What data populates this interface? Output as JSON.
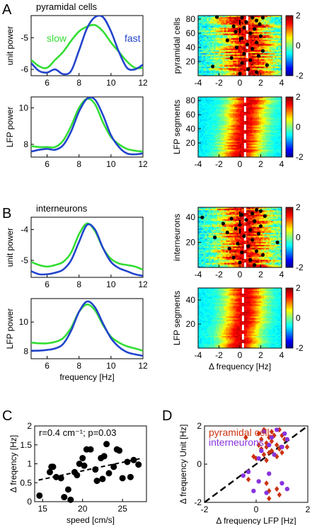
{
  "panels": {
    "A": "A",
    "B": "B",
    "C": "C",
    "D": "D"
  },
  "colors": {
    "slow": "#33dd33",
    "fast": "#2244cc",
    "pyramidal": "#cc3311",
    "interneurons": "#8833dd"
  },
  "chart_data": [
    {
      "id": "A-unit",
      "type": "line",
      "title": "pyramidal cells",
      "xlabel": "",
      "ylabel": "unit power",
      "xlim": [
        5,
        12
      ],
      "ylim": [
        -6.2,
        -4.3
      ],
      "xticks": [
        6,
        8,
        10,
        12
      ],
      "yticks": [
        -6,
        -5
      ],
      "series": [
        {
          "name": "slow",
          "color": "#33dd33",
          "x": [
            5,
            5.5,
            6,
            6.5,
            7,
            7.5,
            8,
            8.5,
            9,
            9.5,
            10,
            10.5,
            11,
            11.5,
            12
          ],
          "y": [
            -5.7,
            -5.9,
            -5.95,
            -5.7,
            -5.45,
            -5.1,
            -4.8,
            -4.65,
            -4.6,
            -4.8,
            -5.15,
            -5.45,
            -5.75,
            -5.95,
            -5.95
          ]
        },
        {
          "name": "fast",
          "color": "#2244cc",
          "x": [
            5,
            5.5,
            6,
            6.5,
            7,
            7.5,
            8,
            8.5,
            9,
            9.5,
            10,
            10.5,
            11,
            11.5,
            12
          ],
          "y": [
            -5.8,
            -6.05,
            -6.1,
            -6.0,
            -6.15,
            -6.05,
            -5.4,
            -4.7,
            -4.35,
            -4.35,
            -4.8,
            -5.45,
            -5.95,
            -6.0,
            -5.85
          ]
        }
      ]
    },
    {
      "id": "A-lfp",
      "type": "line",
      "xlabel": "",
      "ylabel": "LFP power",
      "xlim": [
        5,
        12
      ],
      "ylim": [
        7.3,
        10.6
      ],
      "xticks": [
        6,
        8,
        10,
        12
      ],
      "yticks": [
        8,
        10
      ],
      "series": [
        {
          "name": "slow",
          "color": "#33dd33",
          "x": [
            5,
            5.5,
            6,
            6.5,
            7,
            7.5,
            8,
            8.5,
            9,
            9.5,
            10,
            10.5,
            11,
            11.5,
            12
          ],
          "y": [
            7.9,
            7.85,
            7.85,
            7.85,
            8.2,
            9.0,
            10.0,
            10.5,
            10.2,
            9.2,
            8.4,
            8.0,
            7.75,
            7.65,
            7.6
          ]
        },
        {
          "name": "fast",
          "color": "#2244cc",
          "x": [
            5,
            5.5,
            6,
            6.5,
            7,
            7.5,
            8,
            8.5,
            9,
            9.5,
            10,
            10.5,
            11,
            11.5,
            12
          ],
          "y": [
            7.6,
            7.7,
            7.75,
            7.7,
            7.95,
            8.7,
            9.8,
            10.5,
            10.45,
            9.6,
            8.5,
            7.85,
            7.5,
            7.45,
            7.5
          ]
        }
      ]
    },
    {
      "id": "A-pyr-heatmap",
      "type": "heatmap",
      "xlabel": "",
      "ylabel": "pyramidal cells",
      "xlim": [
        -4,
        4
      ],
      "ylim": [
        0,
        85
      ],
      "xticks": [
        -4,
        -2,
        0,
        2,
        4
      ],
      "yticks": [
        20,
        40,
        60,
        80
      ],
      "colorbar_ticks": [
        2,
        0,
        -2
      ],
      "colorbar_range": [
        -2,
        2
      ],
      "dashed_line_x": 0.7,
      "points": [
        [
          -2.2,
          83
        ],
        [
          0.2,
          82
        ],
        [
          1.2,
          82
        ],
        [
          2.2,
          82
        ],
        [
          1.6,
          78
        ],
        [
          0.6,
          76
        ],
        [
          1.9,
          73
        ],
        [
          -0.6,
          70
        ],
        [
          0.4,
          68
        ],
        [
          1.4,
          66
        ],
        [
          -0.4,
          62
        ],
        [
          1.0,
          60
        ],
        [
          2.0,
          56
        ],
        [
          0.2,
          53
        ],
        [
          -1.2,
          50
        ],
        [
          1.6,
          47
        ],
        [
          0.7,
          44
        ],
        [
          -0.3,
          40
        ],
        [
          1.2,
          38
        ],
        [
          2.2,
          35
        ],
        [
          0.4,
          31
        ],
        [
          1.8,
          28
        ],
        [
          -0.8,
          25
        ],
        [
          1.0,
          22
        ],
        [
          0.2,
          18
        ],
        [
          2.6,
          15
        ],
        [
          -2.6,
          13
        ],
        [
          0.8,
          9
        ],
        [
          1.6,
          5
        ],
        [
          0.0,
          3
        ]
      ]
    },
    {
      "id": "A-lfp-heatmap",
      "type": "heatmap",
      "xlabel": "",
      "ylabel": "LFP segments",
      "xlim": [
        -4,
        4
      ],
      "ylim": [
        0,
        85
      ],
      "xticks": [
        -4,
        -2,
        0,
        2,
        4
      ],
      "yticks": [
        20,
        40,
        60,
        80
      ],
      "colorbar_ticks": [
        2,
        0,
        -2
      ],
      "colorbar_range": [
        -2,
        2
      ],
      "dashed_line_x": 0.5
    },
    {
      "id": "B-unit",
      "type": "line",
      "title": "interneurons",
      "xlabel": "",
      "ylabel": "unit power",
      "xlim": [
        5,
        12
      ],
      "ylim": [
        -5.55,
        -3.6
      ],
      "xticks": [
        6,
        8,
        10,
        12
      ],
      "yticks": [
        -5,
        -4
      ],
      "series": [
        {
          "name": "slow",
          "color": "#33dd33",
          "x": [
            5,
            5.5,
            6,
            6.5,
            7,
            7.5,
            8,
            8.5,
            9,
            9.5,
            10,
            10.5,
            11,
            11.5,
            12
          ],
          "y": [
            -5.05,
            -5.15,
            -5.2,
            -5.15,
            -5.05,
            -4.75,
            -4.15,
            -3.8,
            -4.05,
            -4.6,
            -4.95,
            -5.1,
            -5.15,
            -5.2,
            -5.3
          ]
        },
        {
          "name": "fast",
          "color": "#2244cc",
          "x": [
            5,
            5.5,
            6,
            6.5,
            7,
            7.5,
            8,
            8.5,
            9,
            9.5,
            10,
            10.5,
            11,
            11.5,
            12
          ],
          "y": [
            -5.35,
            -5.45,
            -5.45,
            -5.4,
            -5.3,
            -5.0,
            -4.4,
            -3.85,
            -4.0,
            -4.6,
            -5.05,
            -5.25,
            -5.35,
            -5.45,
            -5.5
          ]
        }
      ]
    },
    {
      "id": "B-lfp",
      "type": "line",
      "xlabel": "frequency [Hz]",
      "ylabel": "LFP power",
      "xlim": [
        5,
        12
      ],
      "ylim": [
        7.5,
        11.6
      ],
      "xticks": [
        6,
        8,
        10,
        12
      ],
      "yticks": [
        8,
        10
      ],
      "series": [
        {
          "name": "slow",
          "color": "#33dd33",
          "x": [
            5,
            5.5,
            6,
            6.5,
            7,
            7.5,
            8,
            8.5,
            9,
            9.5,
            10,
            10.5,
            11,
            11.5,
            12
          ],
          "y": [
            8.6,
            8.55,
            8.55,
            8.65,
            8.9,
            9.6,
            10.7,
            11.2,
            10.8,
            9.8,
            9.0,
            8.6,
            8.35,
            8.2,
            8.05
          ]
        },
        {
          "name": "fast",
          "color": "#2244cc",
          "x": [
            5,
            5.5,
            6,
            6.5,
            7,
            7.5,
            8,
            8.5,
            9,
            9.5,
            10,
            10.5,
            11,
            11.5,
            12
          ],
          "y": [
            8.05,
            8.05,
            8.1,
            8.2,
            8.5,
            9.4,
            10.7,
            11.4,
            11.0,
            9.9,
            8.9,
            8.3,
            7.95,
            7.8,
            7.7
          ]
        }
      ]
    },
    {
      "id": "B-int-heatmap",
      "type": "heatmap",
      "xlabel": "",
      "ylabel": "interneurons",
      "xlim": [
        -4,
        4
      ],
      "ylim": [
        0,
        48
      ],
      "xticks": [
        -4,
        -2,
        0,
        2,
        4
      ],
      "yticks": [
        20,
        40
      ],
      "colorbar_ticks": [
        2,
        0,
        -2
      ],
      "colorbar_range": [
        -2,
        2
      ],
      "dashed_line_x": 0.5,
      "points": [
        [
          1.6,
          46
        ],
        [
          2.0,
          45
        ],
        [
          1.2,
          43
        ],
        [
          0.2,
          42
        ],
        [
          2.4,
          41
        ],
        [
          -3.6,
          40
        ],
        [
          -0.8,
          39
        ],
        [
          0.6,
          38
        ],
        [
          1.4,
          37
        ],
        [
          -1.6,
          35
        ],
        [
          0.0,
          34
        ],
        [
          2.0,
          33
        ],
        [
          -0.4,
          31
        ],
        [
          1.0,
          30
        ],
        [
          -1.2,
          28
        ],
        [
          1.8,
          27
        ],
        [
          0.4,
          25
        ],
        [
          -2.4,
          24
        ],
        [
          1.2,
          22
        ],
        [
          3.6,
          20
        ],
        [
          -0.2,
          19
        ],
        [
          0.8,
          17
        ],
        [
          -1.0,
          15
        ],
        [
          1.6,
          13
        ],
        [
          0.2,
          12
        ],
        [
          2.2,
          10
        ],
        [
          -0.6,
          8
        ],
        [
          1.0,
          6
        ],
        [
          0.0,
          4
        ],
        [
          1.4,
          2
        ]
      ]
    },
    {
      "id": "B-lfp-heatmap",
      "type": "heatmap",
      "xlabel": "Δ frequency [Hz]",
      "ylabel": "LFP segments",
      "xlim": [
        -4,
        4
      ],
      "ylim": [
        0,
        50
      ],
      "xticks": [
        -4,
        -2,
        0,
        2,
        4
      ],
      "yticks": [
        20,
        40
      ],
      "colorbar_ticks": [
        2,
        0,
        -2
      ],
      "colorbar_range": [
        -2,
        2
      ],
      "dashed_line_x": 0.3
    },
    {
      "id": "C",
      "type": "scatter",
      "annotation": "r=0.4 cm⁻¹; p=0.03",
      "xlabel": "speed [cm/s]",
      "ylabel": "Δ freqency [Hz]",
      "xlim": [
        14,
        28
      ],
      "ylim": [
        0,
        2
      ],
      "xticks": [
        15,
        20,
        25
      ],
      "yticks": [
        0,
        0.5,
        1,
        1.5,
        2
      ],
      "fit": {
        "x": [
          14.5,
          27.5
        ],
        "y": [
          0.57,
          1.15
        ]
      },
      "points": [
        [
          14.6,
          0.16
        ],
        [
          15.9,
          0.78
        ],
        [
          16.1,
          0.92
        ],
        [
          16.3,
          0.92
        ],
        [
          16.7,
          0.65
        ],
        [
          17.3,
          0.62
        ],
        [
          17.7,
          0.12
        ],
        [
          18.2,
          0.32
        ],
        [
          18.5,
          0.05
        ],
        [
          19.0,
          0.78
        ],
        [
          19.3,
          0.7
        ],
        [
          19.6,
          1.0
        ],
        [
          20.0,
          1.15
        ],
        [
          20.2,
          0.95
        ],
        [
          20.5,
          1.38
        ],
        [
          21.0,
          1.38
        ],
        [
          21.6,
          0.85
        ],
        [
          21.8,
          0.55
        ],
        [
          22.3,
          1.15
        ],
        [
          22.5,
          0.6
        ],
        [
          22.7,
          1.2
        ],
        [
          23.0,
          1.52
        ],
        [
          23.3,
          0.75
        ],
        [
          23.9,
          0.92
        ],
        [
          24.3,
          1.38
        ],
        [
          24.6,
          1.35
        ],
        [
          25.0,
          0.62
        ],
        [
          25.6,
          1.05
        ],
        [
          26.0,
          0.65
        ],
        [
          26.4,
          1.1
        ],
        [
          27.0,
          0.98
        ]
      ]
    },
    {
      "id": "D",
      "type": "scatter",
      "xlabel": "Δ frequency LFP [Hz]",
      "ylabel": "Δ frequency Unit [Hz]",
      "xlim": [
        -2,
        2
      ],
      "ylim": [
        -2,
        2
      ],
      "xticks": [
        -2,
        0,
        2
      ],
      "yticks": [
        -2,
        0,
        2
      ],
      "series": [
        {
          "name": "pyramidal cells",
          "color": "#cc3311",
          "marker": "diamond",
          "points": [
            [
              0.1,
              1.6
            ],
            [
              0.3,
              1.8
            ],
            [
              0.6,
              1.7
            ],
            [
              0.9,
              1.8
            ],
            [
              0.2,
              1.3
            ],
            [
              0.5,
              1.4
            ],
            [
              0.7,
              1.5
            ],
            [
              1.0,
              1.5
            ],
            [
              0.1,
              1.0
            ],
            [
              0.4,
              1.1
            ],
            [
              0.6,
              1.2
            ],
            [
              0.8,
              1.0
            ],
            [
              1.1,
              1.3
            ],
            [
              0.2,
              0.8
            ],
            [
              0.4,
              0.9
            ],
            [
              0.6,
              0.7
            ],
            [
              0.9,
              0.8
            ],
            [
              1.2,
              0.9
            ],
            [
              0.3,
              0.5
            ],
            [
              0.5,
              0.6
            ],
            [
              0.8,
              0.4
            ],
            [
              1.0,
              0.6
            ],
            [
              0.0,
              0.3
            ],
            [
              0.4,
              0.2
            ],
            [
              -0.4,
              1.4
            ],
            [
              -0.1,
              0.4
            ],
            [
              0.4,
              -1.0
            ],
            [
              0.8,
              -1.3
            ],
            [
              0.5,
              -1.8
            ],
            [
              0.9,
              -1.6
            ],
            [
              -0.3,
              -0.8
            ],
            [
              0.5,
              -1.4
            ]
          ]
        },
        {
          "name": "interneurons",
          "color": "#8833dd",
          "marker": "circle",
          "points": [
            [
              0.3,
              1.7
            ],
            [
              0.8,
              1.8
            ],
            [
              1.1,
              1.6
            ],
            [
              0.6,
              1.4
            ],
            [
              1.2,
              1.3
            ],
            [
              0.5,
              1.0
            ],
            [
              1.0,
              0.9
            ],
            [
              0.2,
              0.7
            ],
            [
              0.7,
              0.5
            ],
            [
              0.1,
              0.3
            ],
            [
              -0.3,
              -0.4
            ],
            [
              -0.5,
              -0.6
            ],
            [
              0.1,
              -0.9
            ],
            [
              0.5,
              -0.5
            ],
            [
              -0.1,
              -1.4
            ],
            [
              0.4,
              -1.5
            ],
            [
              1.0,
              -1.0
            ],
            [
              1.2,
              -1.3
            ]
          ]
        }
      ],
      "identity_line": true
    }
  ]
}
